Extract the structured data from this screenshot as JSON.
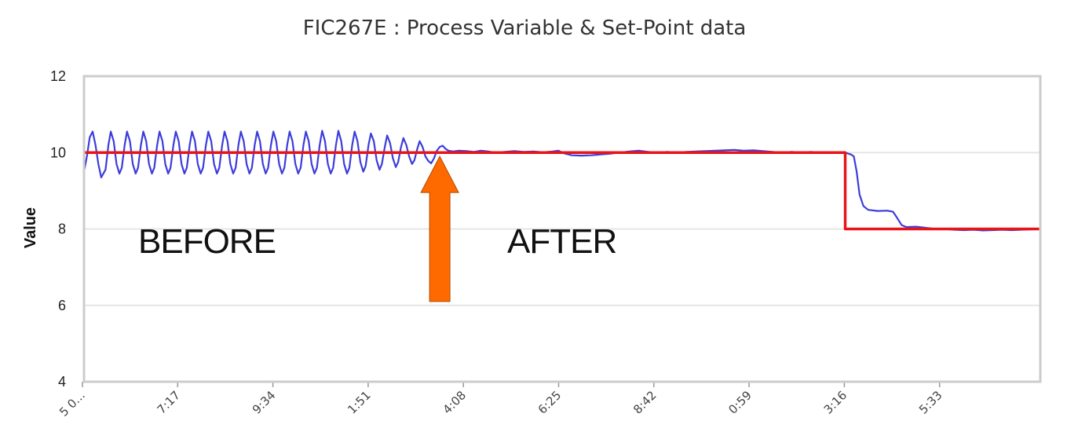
{
  "chart_data": {
    "type": "line",
    "title": "FIC267E : Process Variable & Set-Point data",
    "ylabel": "Value",
    "xlabel": "",
    "ylim": [
      4,
      12
    ],
    "yticks": [
      "12",
      "10",
      "8",
      "6",
      "4"
    ],
    "xtick_labels": [
      "5 0...",
      "7:17",
      "9:34",
      "1:51",
      "4:08",
      "6:25",
      "8:42",
      "0:59",
      "3:16",
      "5:33"
    ],
    "x_range": [
      0,
      100
    ],
    "grid": true,
    "legend": "none",
    "colors": {
      "process_variable": "#3b3ddb",
      "set_point": "#e8141a",
      "arrow": "#ff6a00",
      "grid": "#e6e6e6",
      "frame": "#cccccc"
    },
    "annotations": {
      "before": "BEFORE",
      "after": "AFTER",
      "arrow": {
        "x": 37.2,
        "y_tip": 9.9,
        "y_base": 6.1
      }
    },
    "series": [
      {
        "role": "process_variable",
        "points": [
          [
            0.0,
            9.5
          ],
          [
            0.3,
            9.9
          ],
          [
            0.6,
            10.4
          ],
          [
            0.9,
            10.55
          ],
          [
            1.2,
            10.2
          ],
          [
            1.5,
            9.7
          ],
          [
            1.8,
            9.35
          ],
          [
            2.25,
            9.55
          ],
          [
            2.55,
            10.2
          ],
          [
            2.8,
            10.55
          ],
          [
            3.1,
            10.3
          ],
          [
            3.4,
            9.7
          ],
          [
            3.7,
            9.45
          ],
          [
            3.95,
            9.6
          ],
          [
            4.25,
            10.2
          ],
          [
            4.5,
            10.55
          ],
          [
            4.8,
            10.3
          ],
          [
            5.1,
            9.7
          ],
          [
            5.4,
            9.45
          ],
          [
            5.65,
            9.6
          ],
          [
            5.95,
            10.2
          ],
          [
            6.2,
            10.55
          ],
          [
            6.5,
            10.3
          ],
          [
            6.8,
            9.7
          ],
          [
            7.1,
            9.45
          ],
          [
            7.35,
            9.6
          ],
          [
            7.65,
            10.2
          ],
          [
            7.9,
            10.55
          ],
          [
            8.2,
            10.3
          ],
          [
            8.5,
            9.7
          ],
          [
            8.8,
            9.45
          ],
          [
            9.05,
            9.6
          ],
          [
            9.35,
            10.2
          ],
          [
            9.6,
            10.55
          ],
          [
            9.9,
            10.3
          ],
          [
            10.2,
            9.7
          ],
          [
            10.5,
            9.45
          ],
          [
            10.75,
            9.6
          ],
          [
            11.05,
            10.2
          ],
          [
            11.3,
            10.55
          ],
          [
            11.6,
            10.3
          ],
          [
            11.9,
            9.7
          ],
          [
            12.2,
            9.45
          ],
          [
            12.45,
            9.6
          ],
          [
            12.75,
            10.2
          ],
          [
            13.0,
            10.55
          ],
          [
            13.3,
            10.3
          ],
          [
            13.6,
            9.7
          ],
          [
            13.9,
            9.45
          ],
          [
            14.15,
            9.6
          ],
          [
            14.45,
            10.2
          ],
          [
            14.7,
            10.55
          ],
          [
            15.0,
            10.3
          ],
          [
            15.3,
            9.7
          ],
          [
            15.6,
            9.45
          ],
          [
            15.85,
            9.6
          ],
          [
            16.15,
            10.2
          ],
          [
            16.4,
            10.55
          ],
          [
            16.7,
            10.3
          ],
          [
            17.0,
            9.7
          ],
          [
            17.3,
            9.45
          ],
          [
            17.55,
            9.6
          ],
          [
            17.85,
            10.2
          ],
          [
            18.1,
            10.55
          ],
          [
            18.4,
            10.3
          ],
          [
            18.7,
            9.7
          ],
          [
            19.0,
            9.45
          ],
          [
            19.25,
            9.6
          ],
          [
            19.55,
            10.2
          ],
          [
            19.8,
            10.55
          ],
          [
            20.1,
            10.3
          ],
          [
            20.4,
            9.7
          ],
          [
            20.7,
            9.45
          ],
          [
            20.95,
            9.6
          ],
          [
            21.25,
            10.2
          ],
          [
            21.5,
            10.55
          ],
          [
            21.8,
            10.3
          ],
          [
            22.1,
            9.7
          ],
          [
            22.4,
            9.45
          ],
          [
            22.65,
            9.6
          ],
          [
            22.95,
            10.2
          ],
          [
            23.2,
            10.55
          ],
          [
            23.5,
            10.3
          ],
          [
            23.8,
            9.7
          ],
          [
            24.1,
            9.45
          ],
          [
            24.35,
            9.6
          ],
          [
            24.65,
            10.2
          ],
          [
            24.9,
            10.57
          ],
          [
            25.2,
            10.3
          ],
          [
            25.5,
            9.7
          ],
          [
            25.8,
            9.45
          ],
          [
            26.05,
            9.6
          ],
          [
            26.35,
            10.2
          ],
          [
            26.6,
            10.57
          ],
          [
            26.9,
            10.3
          ],
          [
            27.2,
            9.7
          ],
          [
            27.5,
            9.45
          ],
          [
            27.75,
            9.6
          ],
          [
            28.05,
            10.2
          ],
          [
            28.3,
            10.55
          ],
          [
            28.6,
            10.3
          ],
          [
            28.9,
            9.75
          ],
          [
            29.2,
            9.5
          ],
          [
            29.45,
            9.65
          ],
          [
            29.75,
            10.2
          ],
          [
            30.0,
            10.5
          ],
          [
            30.3,
            10.3
          ],
          [
            30.6,
            9.8
          ],
          [
            30.9,
            9.55
          ],
          [
            31.15,
            9.7
          ],
          [
            31.45,
            10.15
          ],
          [
            31.7,
            10.45
          ],
          [
            32.0,
            10.25
          ],
          [
            32.3,
            9.85
          ],
          [
            32.6,
            9.62
          ],
          [
            32.85,
            9.75
          ],
          [
            33.15,
            10.15
          ],
          [
            33.4,
            10.38
          ],
          [
            33.7,
            10.2
          ],
          [
            34.0,
            9.9
          ],
          [
            34.3,
            9.7
          ],
          [
            34.55,
            9.8
          ],
          [
            34.85,
            10.1
          ],
          [
            35.1,
            10.3
          ],
          [
            35.4,
            10.15
          ],
          [
            35.7,
            9.9
          ],
          [
            36.0,
            9.78
          ],
          [
            36.3,
            9.72
          ],
          [
            36.6,
            9.85
          ],
          [
            36.9,
            10.05
          ],
          [
            37.2,
            10.15
          ],
          [
            37.5,
            10.18
          ],
          [
            37.8,
            10.1
          ],
          [
            38.1,
            10.05
          ],
          [
            38.6,
            10.03
          ],
          [
            39.2,
            10.05
          ],
          [
            40.0,
            10.04
          ],
          [
            40.8,
            10.02
          ],
          [
            41.5,
            10.05
          ],
          [
            42.3,
            10.03
          ],
          [
            43.0,
            10.0
          ],
          [
            44.0,
            10.02
          ],
          [
            45.0,
            10.04
          ],
          [
            46.0,
            10.02
          ],
          [
            47.0,
            10.03
          ],
          [
            48.0,
            10.01
          ],
          [
            49.0,
            10.03
          ],
          [
            49.6,
            10.05
          ],
          [
            50.2,
            9.98
          ],
          [
            51.0,
            9.93
          ],
          [
            52.0,
            9.92
          ],
          [
            53.0,
            9.93
          ],
          [
            54.0,
            9.95
          ],
          [
            55.0,
            9.97
          ],
          [
            56.0,
            10.0
          ],
          [
            57.0,
            10.03
          ],
          [
            58.0,
            10.05
          ],
          [
            59.0,
            10.02
          ],
          [
            60.0,
            10.0
          ],
          [
            61.0,
            10.02
          ],
          [
            62.0,
            10.0
          ],
          [
            63.0,
            10.02
          ],
          [
            64.0,
            10.03
          ],
          [
            65.0,
            10.04
          ],
          [
            66.0,
            10.05
          ],
          [
            67.0,
            10.06
          ],
          [
            68.0,
            10.07
          ],
          [
            69.0,
            10.05
          ],
          [
            70.0,
            10.06
          ],
          [
            71.0,
            10.04
          ],
          [
            72.0,
            10.02
          ],
          [
            73.0,
            10.0
          ],
          [
            74.0,
            10.02
          ],
          [
            75.0,
            10.0
          ],
          [
            76.0,
            10.02
          ],
          [
            77.0,
            10.0
          ],
          [
            78.0,
            10.01
          ],
          [
            79.0,
            10.0
          ],
          [
            79.6,
            10.0
          ],
          [
            80.2,
            9.95
          ],
          [
            80.5,
            9.9
          ],
          [
            80.8,
            9.5
          ],
          [
            81.1,
            8.9
          ],
          [
            81.5,
            8.6
          ],
          [
            82.0,
            8.5
          ],
          [
            83.0,
            8.47
          ],
          [
            84.0,
            8.48
          ],
          [
            84.6,
            8.45
          ],
          [
            85.0,
            8.3
          ],
          [
            85.5,
            8.1
          ],
          [
            86.0,
            8.05
          ],
          [
            87.0,
            8.06
          ],
          [
            88.0,
            8.03
          ],
          [
            89.0,
            8.0
          ],
          [
            90.0,
            8.0
          ],
          [
            91.0,
            7.98
          ],
          [
            92.0,
            7.97
          ],
          [
            93.0,
            7.98
          ],
          [
            94.0,
            7.96
          ],
          [
            95.0,
            7.97
          ],
          [
            96.0,
            7.98
          ],
          [
            97.0,
            7.97
          ],
          [
            98.0,
            7.98
          ],
          [
            99.0,
            7.99
          ],
          [
            100.0,
            8.0
          ]
        ]
      },
      {
        "role": "set_point",
        "points": [
          [
            0,
            10.0
          ],
          [
            79.6,
            10.0
          ],
          [
            79.6,
            8.0
          ],
          [
            100,
            8.0
          ]
        ]
      }
    ]
  }
}
